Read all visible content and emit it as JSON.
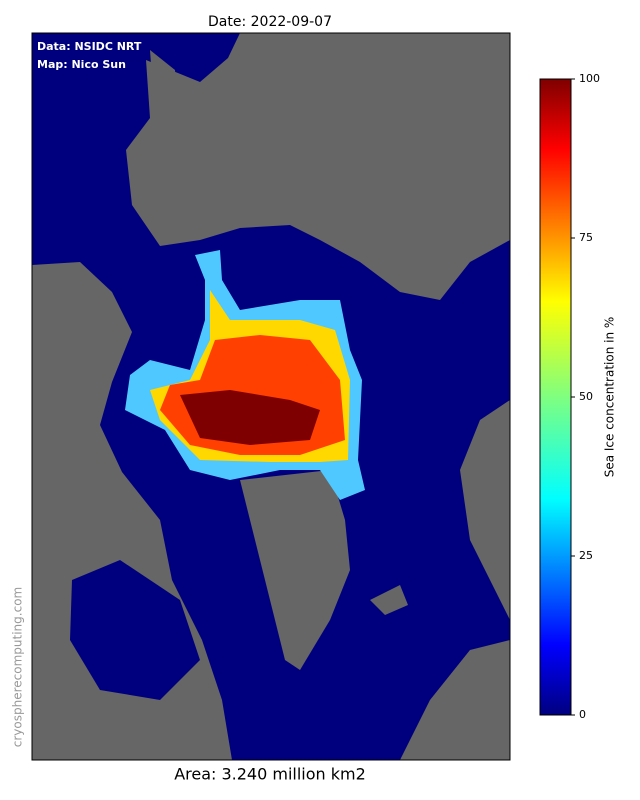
{
  "title": "Date: 2022-09-07",
  "map": {
    "annotations": [
      "Data: NSIDC NRT",
      "Map: Nico Sun"
    ],
    "watermark": "cryospherecomputing.com"
  },
  "colorbar": {
    "label": "Sea Ice concentration in %",
    "lim": [
      0,
      100
    ],
    "ticks": [
      0,
      25,
      50,
      75,
      100
    ]
  },
  "footer": "Area: 3.240 million km2"
}
